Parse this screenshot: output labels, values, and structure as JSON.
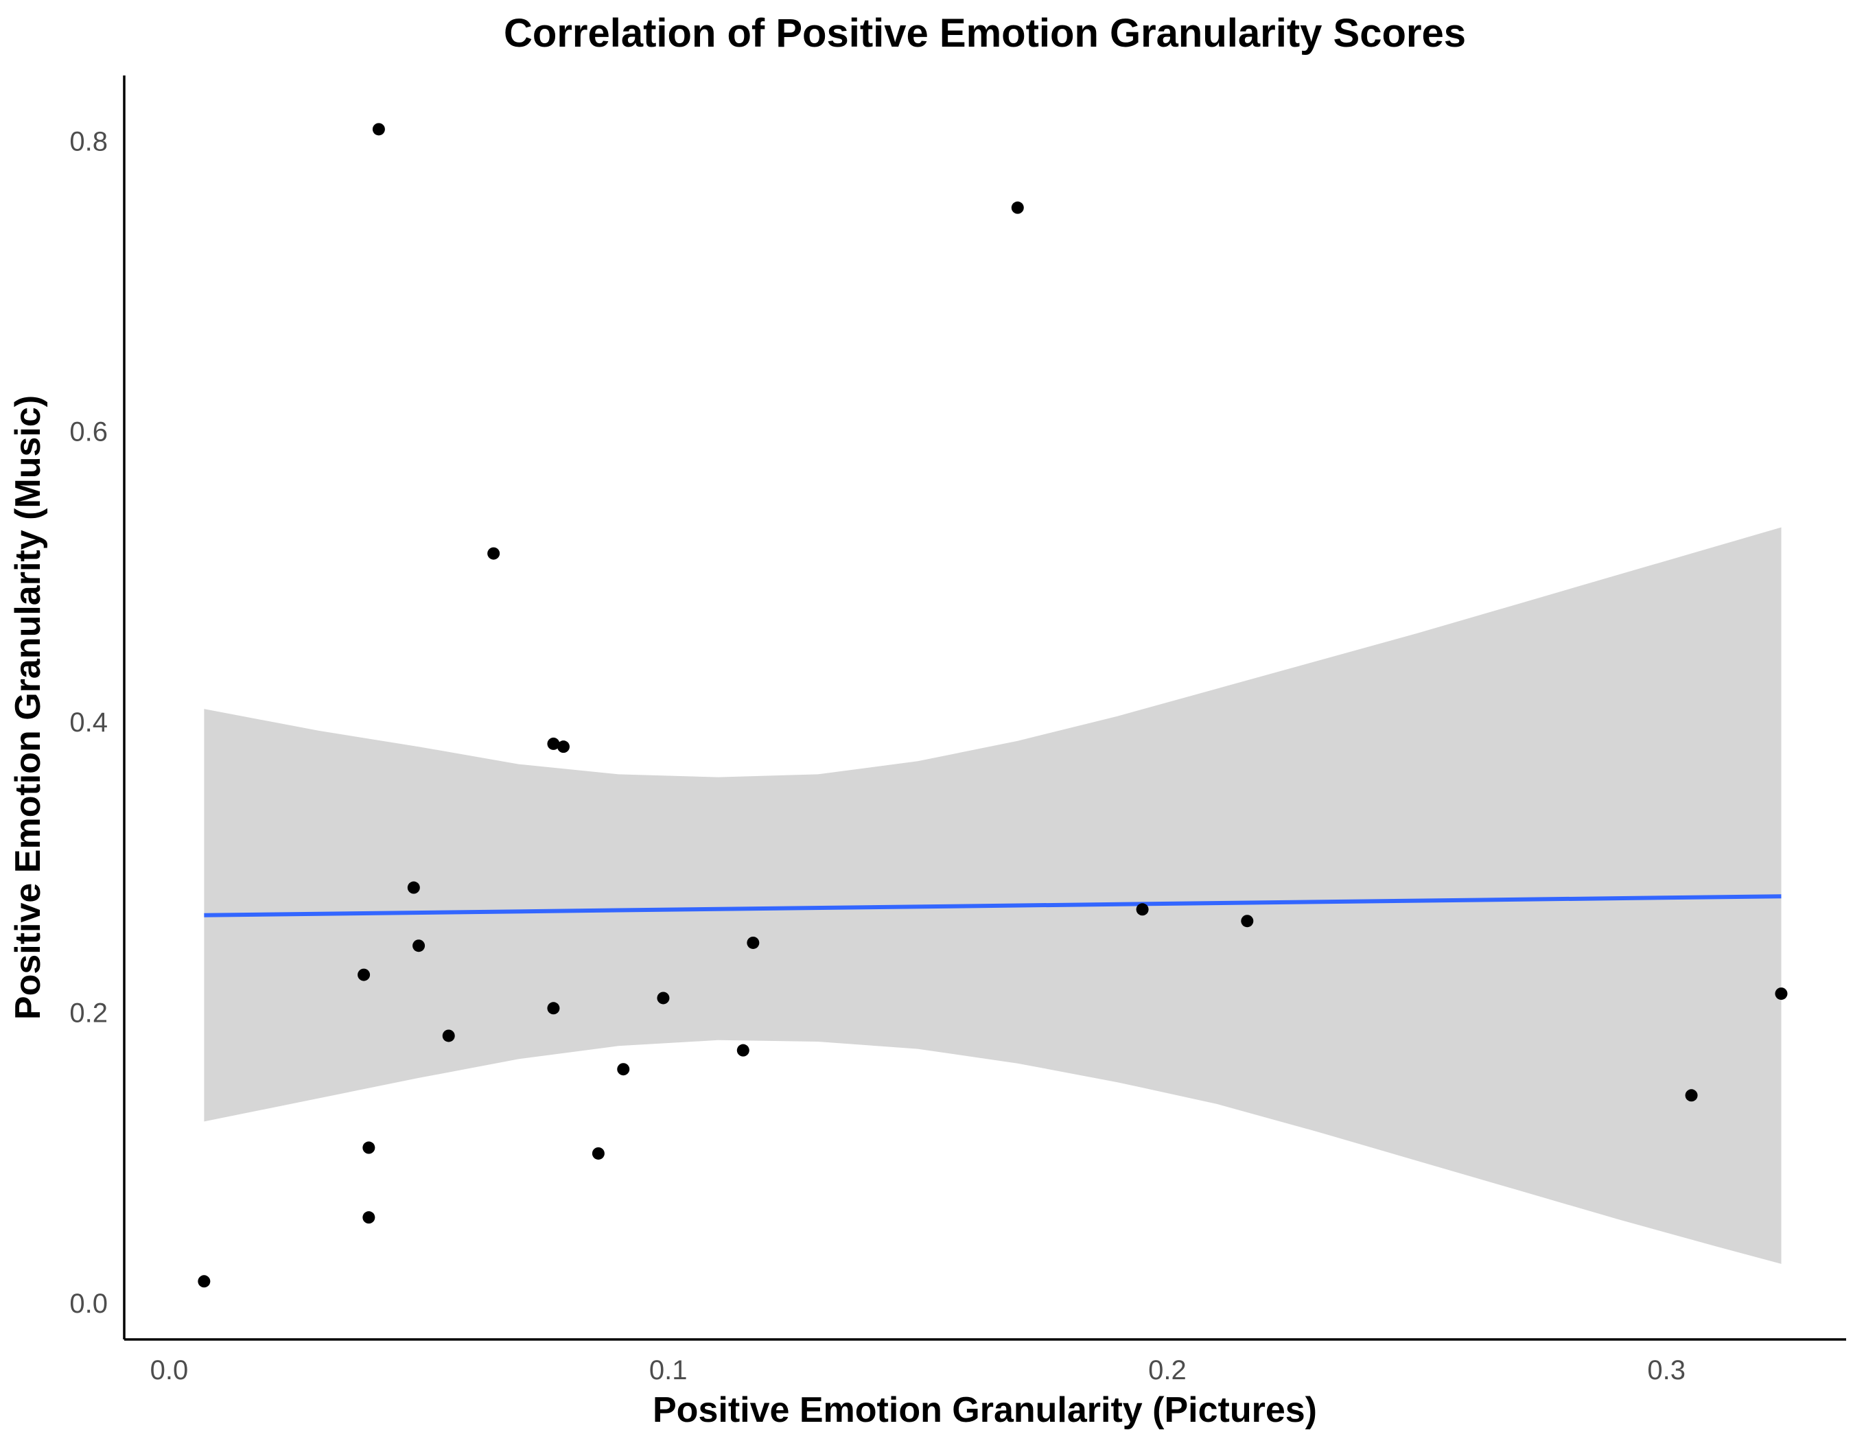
{
  "chart_data": {
    "type": "scatter",
    "title": "Correlation of Positive Emotion Granularity Scores",
    "xlabel": "Positive Emotion Granularity (Pictures)",
    "ylabel": "Positive Emotion Granularity (Music)",
    "xlim": [
      -0.009,
      0.336
    ],
    "ylim": [
      -0.025,
      0.845
    ],
    "x_ticks": [
      "0.0",
      "0.1",
      "0.2",
      "0.3"
    ],
    "x_tick_values": [
      0.0,
      0.1,
      0.2,
      0.3
    ],
    "y_ticks": [
      "0.0",
      "0.2",
      "0.4",
      "0.6",
      "0.8"
    ],
    "y_tick_values": [
      0.0,
      0.2,
      0.4,
      0.6,
      0.8
    ],
    "grid": false,
    "points": [
      {
        "x": 0.007,
        "y": 0.015
      },
      {
        "x": 0.039,
        "y": 0.226
      },
      {
        "x": 0.04,
        "y": 0.059
      },
      {
        "x": 0.04,
        "y": 0.107
      },
      {
        "x": 0.042,
        "y": 0.808
      },
      {
        "x": 0.049,
        "y": 0.286
      },
      {
        "x": 0.05,
        "y": 0.246
      },
      {
        "x": 0.056,
        "y": 0.184
      },
      {
        "x": 0.065,
        "y": 0.516
      },
      {
        "x": 0.077,
        "y": 0.203
      },
      {
        "x": 0.077,
        "y": 0.385
      },
      {
        "x": 0.079,
        "y": 0.383
      },
      {
        "x": 0.086,
        "y": 0.103
      },
      {
        "x": 0.091,
        "y": 0.161
      },
      {
        "x": 0.099,
        "y": 0.21
      },
      {
        "x": 0.115,
        "y": 0.174
      },
      {
        "x": 0.117,
        "y": 0.248
      },
      {
        "x": 0.17,
        "y": 0.754
      },
      {
        "x": 0.195,
        "y": 0.271
      },
      {
        "x": 0.216,
        "y": 0.263
      },
      {
        "x": 0.305,
        "y": 0.143
      },
      {
        "x": 0.323,
        "y": 0.213
      }
    ],
    "fit_line": {
      "x": [
        0.007,
        0.323
      ],
      "y": [
        0.267,
        0.28
      ],
      "color": "#3366ff"
    },
    "confidence_band": {
      "x": [
        0.007,
        0.03,
        0.05,
        0.07,
        0.09,
        0.11,
        0.13,
        0.15,
        0.17,
        0.19,
        0.21,
        0.23,
        0.25,
        0.27,
        0.29,
        0.31,
        0.323
      ],
      "upper": [
        0.409,
        0.394,
        0.383,
        0.371,
        0.364,
        0.362,
        0.364,
        0.373,
        0.387,
        0.404,
        0.423,
        0.442,
        0.461,
        0.481,
        0.501,
        0.521,
        0.534
      ],
      "lower": [
        0.125,
        0.141,
        0.155,
        0.168,
        0.177,
        0.181,
        0.18,
        0.175,
        0.165,
        0.152,
        0.137,
        0.118,
        0.098,
        0.078,
        0.058,
        0.039,
        0.027
      ],
      "color": "#d6d6d6"
    },
    "point_color": "#000000"
  }
}
